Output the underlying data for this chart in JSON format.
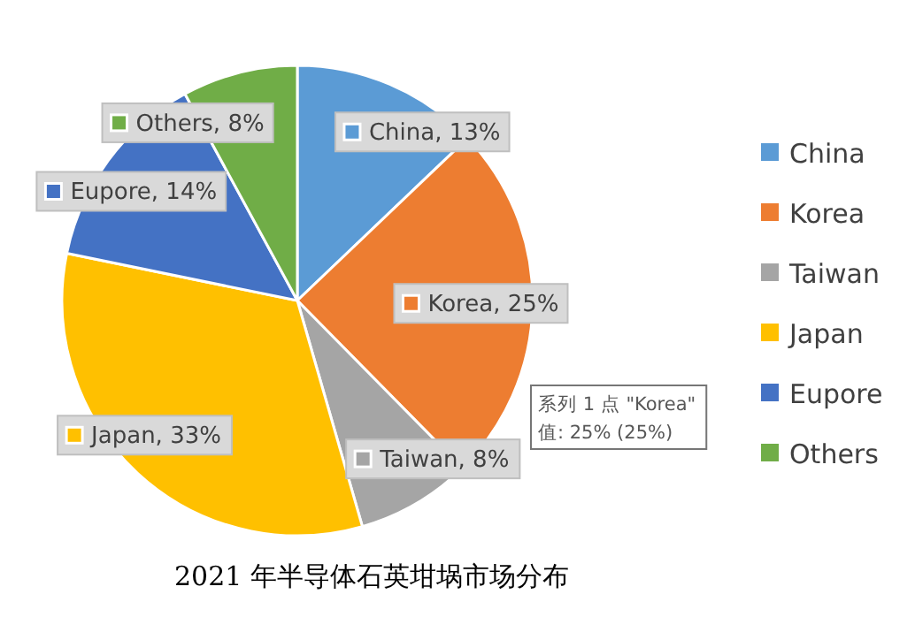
{
  "chart_data": {
    "type": "pie",
    "title": "2021 年半导体石英坩埚市场分布",
    "categories": [
      "China",
      "Korea",
      "Taiwan",
      "Japan",
      "Eupore",
      "Others"
    ],
    "values": [
      13,
      25,
      8,
      33,
      14,
      8
    ],
    "value_labels": [
      "China, 13%",
      "Korea, 25%",
      "Taiwan, 8%",
      "Japan, 33%",
      "Eupore, 14%",
      "Others, 8%"
    ],
    "colors": [
      "#5b9bd5",
      "#ed7d31",
      "#a5a5a5",
      "#ffc000",
      "#4472c4",
      "#70ad47"
    ],
    "legend": "right",
    "annotations": [
      "系列 1 点 \"Korea\"\n值: 25% (25%)"
    ]
  }
}
